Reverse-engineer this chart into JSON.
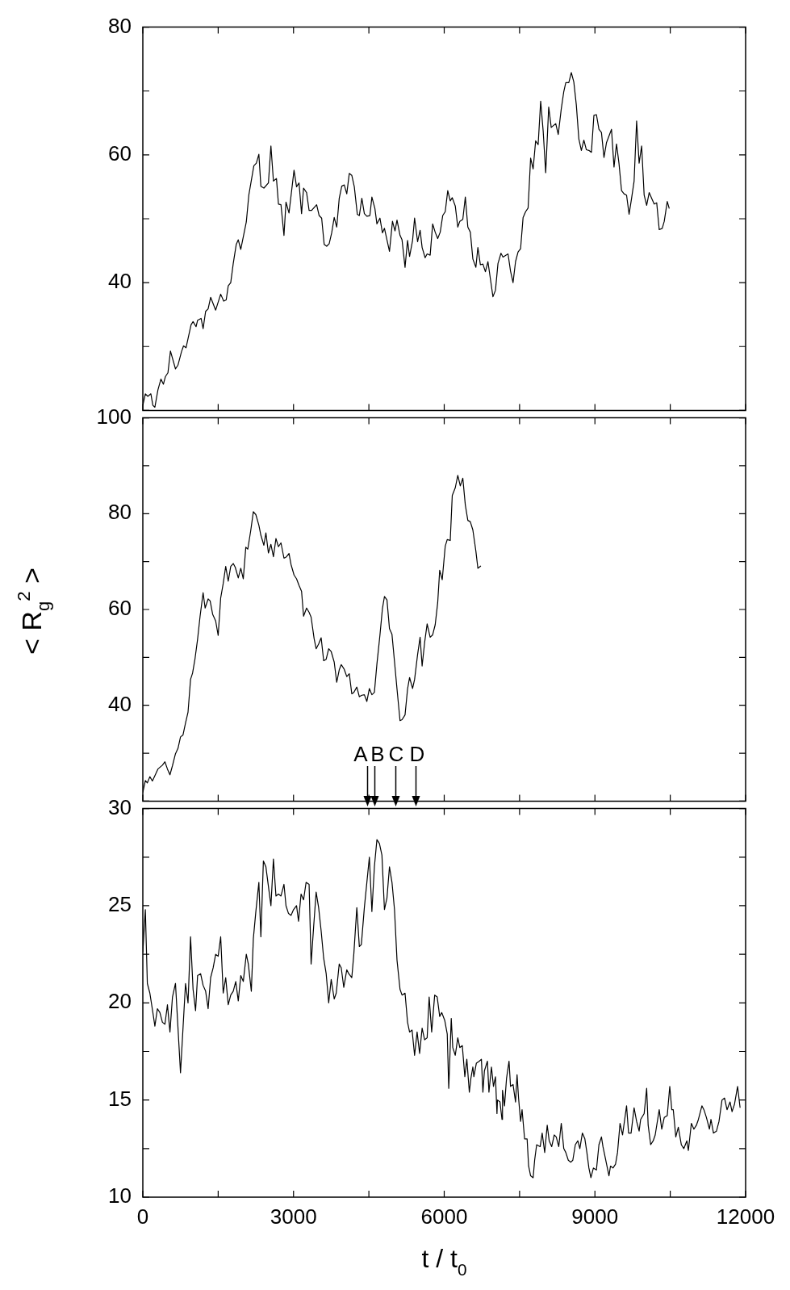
{
  "chart_data": [
    {
      "type": "line",
      "xlim": [
        0,
        12000
      ],
      "xticks": [
        0,
        {
          "value": 1500,
          "label": null
        },
        3000,
        {
          "value": 4500,
          "label": null
        },
        6000,
        {
          "value": 7500,
          "label": null
        },
        9000,
        {
          "value": 10500,
          "label": null
        },
        12000
      ],
      "ylim": [
        20,
        80
      ],
      "yticks": [
        {
          "value": 20,
          "label": null
        },
        {
          "value": 30,
          "label": null
        },
        40,
        {
          "value": 50,
          "label": null
        },
        60,
        {
          "value": 70,
          "label": null
        },
        80
      ],
      "tick_labels": "y",
      "series": [
        {
          "color": "#000000",
          "x": [
            0,
            50,
            100,
            160,
            200,
            240,
            300,
            360,
            410,
            450,
            500,
            550,
            650,
            700,
            770,
            810,
            860,
            960,
            1000,
            1060,
            1090,
            1160,
            1200,
            1250,
            1300,
            1350,
            1450,
            1550,
            1610,
            1660,
            1700,
            1750,
            1800,
            1860,
            1900,
            1950,
            2060,
            2110,
            2210,
            2260,
            2310,
            2350,
            2410,
            2500,
            2550,
            2600,
            2660,
            2700,
            2750,
            2810,
            2850,
            2910,
            3010,
            3060,
            3110,
            3160,
            3200,
            3260,
            3310,
            3360,
            3460,
            3510,
            3560,
            3610,
            3660,
            3710,
            3760,
            3810,
            3860,
            3910,
            3960,
            4010,
            4060,
            4110,
            4160,
            4210,
            4270,
            4310,
            4360,
            4410,
            4460,
            4520,
            4560,
            4620,
            4660,
            4720,
            4770,
            4810,
            4910,
            4970,
            5020,
            5060,
            5120,
            5160,
            5220,
            5270,
            5310,
            5370,
            5410,
            5470,
            5520,
            5560,
            5620,
            5660,
            5720,
            5770,
            5820,
            5870,
            5920,
            5970,
            6020,
            6070,
            6120,
            6160,
            6220,
            6270,
            6310,
            6370,
            6420,
            6470,
            6520,
            6570,
            6630,
            6670,
            6720,
            6770,
            6820,
            6870,
            6970,
            7020,
            7070,
            7130,
            7170,
            7270,
            7320,
            7370,
            7420,
            7470,
            7520,
            7570,
            7620,
            7670,
            7720,
            7770,
            7820,
            7870,
            7920,
            7970,
            8020,
            8080,
            8130,
            8220,
            8270,
            8330,
            8380,
            8420,
            8480,
            8530,
            8580,
            8630,
            8680,
            8730,
            8780,
            8830,
            8880,
            8930,
            8980,
            9030,
            9080,
            9130,
            9180,
            9230,
            9330,
            9380,
            9430,
            9480,
            9530,
            9580,
            9630,
            9680,
            9730,
            9780,
            9830,
            9880,
            9930,
            9980,
            10030,
            10080,
            10130,
            10180,
            10230,
            10280,
            10340,
            10380,
            10440,
            10480
          ],
          "values": [
            20.8,
            22.6,
            22.2,
            22.6,
            20.8,
            20.5,
            23.2,
            24.9,
            24.1,
            25.3,
            25.9,
            29.3,
            26.5,
            27.1,
            29.2,
            30.1,
            29.8,
            33.4,
            33.9,
            33.1,
            34.1,
            34.4,
            32.8,
            35.5,
            35.9,
            37.7,
            35.7,
            38.2,
            37.1,
            37.3,
            39.5,
            40.0,
            43.0,
            46.0,
            46.7,
            45.2,
            49.5,
            53.7,
            58.3,
            58.7,
            60.1,
            55.1,
            54.8,
            55.6,
            61.4,
            55.9,
            56.3,
            52.3,
            52.2,
            47.4,
            52.6,
            50.9,
            57.6,
            55.0,
            55.6,
            50.8,
            54.8,
            54.1,
            51.3,
            51.3,
            52.2,
            50.5,
            50.1,
            46.0,
            45.7,
            46.1,
            47.8,
            50.2,
            48.7,
            53.2,
            55.1,
            55.3,
            53.9,
            57.1,
            56.8,
            55.0,
            50.7,
            50.5,
            53.2,
            50.8,
            50.4,
            50.5,
            53.4,
            51.6,
            49.2,
            50.1,
            47.8,
            48.5,
            44.9,
            49.6,
            48.1,
            49.8,
            47.4,
            46.7,
            42.4,
            46.6,
            44.1,
            46.6,
            50.1,
            46.4,
            48.2,
            45.5,
            43.9,
            44.5,
            44.3,
            49.2,
            47.9,
            46.9,
            47.9,
            50.5,
            51.1,
            54.4,
            52.8,
            53.3,
            52.0,
            48.7,
            49.6,
            49.9,
            53.4,
            48.7,
            47.9,
            43.7,
            42.4,
            45.5,
            42.8,
            42.9,
            41.7,
            43.3,
            37.8,
            38.8,
            43.0,
            44.6,
            44.0,
            44.5,
            41.8,
            40.0,
            43.3,
            44.8,
            45.3,
            50.2,
            51.1,
            51.7,
            59.5,
            57.8,
            62.2,
            61.6,
            68.4,
            63.7,
            57.2,
            67.5,
            64.3,
            64.9,
            63.2,
            67.2,
            69.9,
            71.3,
            71.3,
            72.9,
            71.4,
            67.8,
            62.5,
            60.7,
            62.3,
            60.8,
            60.7,
            60.4,
            66.2,
            66.3,
            64.0,
            63.5,
            59.6,
            61.9,
            64.0,
            58.1,
            61.7,
            58.6,
            54.4,
            53.9,
            53.7,
            50.7,
            53.2,
            55.9,
            65.3,
            58.7,
            61.4,
            53.7,
            52.1,
            54.1,
            53.2,
            52.3,
            52.5,
            48.3,
            48.5,
            49.6,
            52.7,
            51.6
          ]
        }
      ]
    },
    {
      "type": "line",
      "ylabel": "< R$_{g}$$^{2}$ >",
      "xlim": [
        0,
        12000
      ],
      "xticks": [
        0,
        {
          "value": 1500,
          "label": null
        },
        3000,
        {
          "value": 4500,
          "label": null
        },
        6000,
        {
          "value": 7500,
          "label": null
        },
        9000,
        {
          "value": 10500,
          "label": null
        },
        12000
      ],
      "ylim": [
        20,
        100
      ],
      "yticks": [
        {
          "value": 20,
          "label": null
        },
        {
          "value": 30,
          "label": null
        },
        40,
        {
          "value": 50,
          "label": null
        },
        60,
        {
          "value": 70,
          "label": null
        },
        80,
        {
          "value": 90,
          "label": null
        },
        100
      ],
      "tick_labels": "y",
      "annotations": [
        "A",
        "B",
        "C",
        "D"
      ],
      "series": [
        {
          "color": "#000000",
          "x": [
            0,
            50,
            90,
            140,
            190,
            230,
            300,
            390,
            440,
            490,
            540,
            590,
            650,
            700,
            750,
            800,
            850,
            900,
            950,
            990,
            1040,
            1090,
            1140,
            1200,
            1240,
            1300,
            1340,
            1390,
            1450,
            1500,
            1550,
            1600,
            1650,
            1700,
            1750,
            1800,
            1840,
            1900,
            1950,
            2000,
            2050,
            2090,
            2150,
            2200,
            2250,
            2310,
            2350,
            2410,
            2450,
            2500,
            2550,
            2600,
            2650,
            2700,
            2750,
            2810,
            2860,
            2910,
            2950,
            3010,
            3060,
            3110,
            3160,
            3200,
            3260,
            3310,
            3350,
            3410,
            3450,
            3500,
            3550,
            3600,
            3650,
            3700,
            3750,
            3810,
            3860,
            3910,
            3950,
            4010,
            4060,
            4110,
            4160,
            4200,
            4260,
            4310,
            4360,
            4410,
            4460,
            4510,
            4560,
            4610,
            4660,
            4720,
            4770,
            4810,
            4860,
            4910,
            4960,
            5020,
            5060,
            5120,
            5160,
            5220,
            5270,
            5310,
            5370,
            5410,
            5470,
            5520,
            5560,
            5610,
            5660,
            5720,
            5770,
            5820,
            5870,
            5910,
            5960,
            6020,
            6060,
            6120,
            6160,
            6220,
            6270,
            6320,
            6370,
            6420,
            6470,
            6520,
            6570,
            6630,
            6670,
            6730
          ],
          "values": [
            21.8,
            24.3,
            23.8,
            25.1,
            24.2,
            25.1,
            26.7,
            27.5,
            28.2,
            26.7,
            25.5,
            27.4,
            29.9,
            31.0,
            33.4,
            33.8,
            36.3,
            38.6,
            45.4,
            46.7,
            49.8,
            53.8,
            58.6,
            63.5,
            60.3,
            62.2,
            61.8,
            59.0,
            57.6,
            54.6,
            62.4,
            65.4,
            69.0,
            65.9,
            69.0,
            69.6,
            68.8,
            66.6,
            68.6,
            66.4,
            73.0,
            72.6,
            76.6,
            80.4,
            79.8,
            77.6,
            75.5,
            73.4,
            76.0,
            71.8,
            73.6,
            71.0,
            74.8,
            73.1,
            73.9,
            70.7,
            71.0,
            71.7,
            69.4,
            67.2,
            66.4,
            65.0,
            63.8,
            58.6,
            60.3,
            59.4,
            58.4,
            53.9,
            51.8,
            52.8,
            54.1,
            49.3,
            49.6,
            51.8,
            51.2,
            49.0,
            44.8,
            47.4,
            48.5,
            47.5,
            46.0,
            46.6,
            42.4,
            42.7,
            43.8,
            41.8,
            42.1,
            42.2,
            40.8,
            43.5,
            42.2,
            42.7,
            48.6,
            54.6,
            60.2,
            62.7,
            62.0,
            56.0,
            54.8,
            48.0,
            43.4,
            36.8,
            37.0,
            38.0,
            43.4,
            45.8,
            43.5,
            45.4,
            50.6,
            54.2,
            48.2,
            53.1,
            57.0,
            54.2,
            54.7,
            56.8,
            61.4,
            68.2,
            66.2,
            73.2,
            74.6,
            74.4,
            83.8,
            85.4,
            88.0,
            85.8,
            87.4,
            81.8,
            78.6,
            78.3,
            76.6,
            72.2,
            68.6,
            69.1
          ]
        }
      ]
    },
    {
      "type": "line",
      "xlabel": "t / t$_{0}$",
      "xlim": [
        0,
        12000
      ],
      "xticks": [
        0,
        {
          "value": 1500,
          "label": null
        },
        3000,
        {
          "value": 4500,
          "label": null
        },
        6000,
        {
          "value": 7500,
          "label": null
        },
        9000,
        {
          "value": 10500,
          "label": null
        },
        12000
      ],
      "ylim": [
        10,
        30
      ],
      "yticks": [
        10,
        {
          "value": 12.5,
          "label": null
        },
        15,
        {
          "value": 17.5,
          "label": null
        },
        20,
        {
          "value": 22.5,
          "label": null
        },
        25,
        {
          "value": 27.5,
          "label": null
        },
        30
      ],
      "series": [
        {
          "color": "#000000",
          "x": [
            0,
            50,
            90,
            140,
            200,
            240,
            290,
            340,
            390,
            440,
            490,
            540,
            590,
            650,
            750,
            850,
            900,
            950,
            1000,
            1050,
            1090,
            1150,
            1200,
            1250,
            1300,
            1350,
            1400,
            1450,
            1500,
            1550,
            1600,
            1650,
            1700,
            1750,
            1800,
            1850,
            1900,
            1950,
            2000,
            2060,
            2100,
            2160,
            2200,
            2250,
            2310,
            2350,
            2400,
            2450,
            2500,
            2550,
            2600,
            2650,
            2700,
            2750,
            2810,
            2850,
            2900,
            2950,
            3000,
            3060,
            3100,
            3150,
            3200,
            3250,
            3310,
            3350,
            3400,
            3450,
            3500,
            3550,
            3600,
            3650,
            3700,
            3750,
            3810,
            3850,
            3910,
            3950,
            4000,
            4060,
            4100,
            4160,
            4200,
            4260,
            4310,
            4350,
            4410,
            4460,
            4510,
            4560,
            4610,
            4660,
            4710,
            4760,
            4810,
            4860,
            4910,
            4960,
            5010,
            5060,
            5120,
            5160,
            5220,
            5270,
            5310,
            5360,
            5410,
            5460,
            5510,
            5560,
            5610,
            5660,
            5700,
            5750,
            5810,
            5860,
            5910,
            5950,
            6010,
            6060,
            6090,
            6140,
            6170,
            6220,
            6270,
            6310,
            6360,
            6410,
            6450,
            6500,
            6530,
            6570,
            6590,
            6640,
            6700,
            6740,
            6770,
            6800,
            6860,
            6890,
            6940,
            6980,
            7020,
            7050,
            7060,
            7110,
            7150,
            7160,
            7200,
            7240,
            7290,
            7320,
            7370,
            7420,
            7450,
            7480,
            7520,
            7550,
            7600,
            7650,
            7680,
            7720,
            7770,
            7800,
            7840,
            7910,
            7950,
            8000,
            8050,
            8090,
            8140,
            8190,
            8230,
            8280,
            8330,
            8380,
            8420,
            8470,
            8520,
            8560,
            8610,
            8660,
            8700,
            8750,
            8800,
            8840,
            8880,
            8920,
            8970,
            9030,
            9080,
            9130,
            9160,
            9200,
            9280,
            9310,
            9360,
            9410,
            9450,
            9500,
            9550,
            9630,
            9670,
            9720,
            9780,
            9830,
            9880,
            9910,
            9980,
            10030,
            10060,
            10110,
            10160,
            10200,
            10280,
            10330,
            10380,
            10440,
            10490,
            10530,
            10560,
            10610,
            10660,
            10720,
            10770,
            10830,
            10860,
            10920,
            10970,
            11020,
            11060,
            11130,
            11170,
            11220,
            11280,
            11310,
            11360,
            11420,
            11470,
            11530,
            11580,
            11630,
            11690,
            11730,
            11780,
            11840,
            11890
          ],
          "values": [
            22.6,
            24.8,
            21.0,
            20.5,
            19.5,
            18.8,
            19.7,
            19.5,
            19.0,
            18.9,
            19.9,
            18.5,
            20.3,
            21.0,
            16.4,
            21.0,
            20.0,
            23.4,
            20.7,
            19.6,
            21.4,
            21.5,
            20.9,
            20.6,
            19.7,
            21.3,
            21.8,
            22.5,
            22.4,
            23.4,
            20.5,
            21.3,
            19.9,
            20.4,
            20.6,
            21.1,
            20.1,
            21.4,
            21.1,
            22.5,
            22.0,
            20.6,
            23.3,
            24.7,
            26.2,
            23.4,
            27.3,
            27.0,
            26.0,
            25.0,
            27.4,
            25.5,
            25.6,
            25.5,
            26.1,
            25.0,
            24.6,
            24.5,
            24.8,
            25.0,
            24.2,
            25.6,
            25.3,
            26.2,
            26.1,
            22.0,
            23.9,
            25.7,
            24.9,
            23.7,
            22.3,
            21.5,
            20.0,
            21.2,
            20.2,
            20.5,
            22.0,
            21.8,
            20.8,
            21.7,
            21.5,
            21.3,
            22.5,
            24.9,
            22.9,
            23.0,
            24.9,
            26.2,
            27.5,
            24.7,
            27.0,
            28.4,
            28.2,
            27.6,
            24.8,
            25.4,
            27.0,
            26.2,
            24.8,
            22.2,
            20.7,
            20.4,
            20.5,
            19.0,
            18.5,
            18.6,
            17.3,
            18.5,
            17.4,
            18.7,
            18.1,
            18.2,
            20.3,
            18.5,
            20.4,
            20.3,
            19.3,
            19.5,
            19.1,
            18.4,
            15.6,
            19.2,
            17.7,
            17.3,
            18.2,
            17.7,
            17.8,
            16.2,
            17.1,
            15.4,
            16.1,
            16.7,
            16.2,
            16.9,
            17.0,
            17.1,
            15.4,
            16.5,
            17.0,
            15.4,
            16.7,
            15.7,
            16.2,
            14.3,
            15.0,
            14.9,
            14.0,
            15.5,
            14.7,
            16.1,
            17.0,
            15.7,
            15.8,
            14.9,
            16.3,
            15.1,
            13.9,
            14.5,
            13.0,
            13.0,
            11.6,
            11.1,
            11.0,
            11.9,
            12.7,
            12.6,
            13.3,
            12.3,
            13.7,
            12.9,
            12.6,
            13.2,
            13.1,
            12.6,
            13.8,
            12.5,
            12.3,
            11.9,
            11.8,
            11.9,
            12.7,
            12.9,
            12.5,
            13.3,
            13.0,
            12.3,
            11.5,
            11.0,
            11.5,
            11.4,
            12.7,
            13.1,
            12.6,
            12.1,
            11.1,
            11.6,
            11.5,
            11.7,
            12.3,
            13.8,
            13.2,
            14.7,
            13.3,
            13.3,
            14.6,
            13.9,
            13.4,
            14.0,
            14.3,
            15.6,
            13.7,
            12.7,
            12.9,
            13.2,
            14.5,
            13.5,
            14.1,
            14.2,
            15.7,
            14.5,
            14.5,
            13.1,
            13.6,
            12.7,
            12.5,
            12.9,
            12.4,
            13.8,
            13.5,
            13.7,
            14.0,
            14.7,
            14.5,
            14.1,
            13.5,
            14.0,
            13.3,
            13.4,
            13.9,
            15.0,
            15.1,
            14.5,
            14.9,
            14.4,
            14.8,
            15.7,
            14.6
          ]
        }
      ]
    }
  ]
}
